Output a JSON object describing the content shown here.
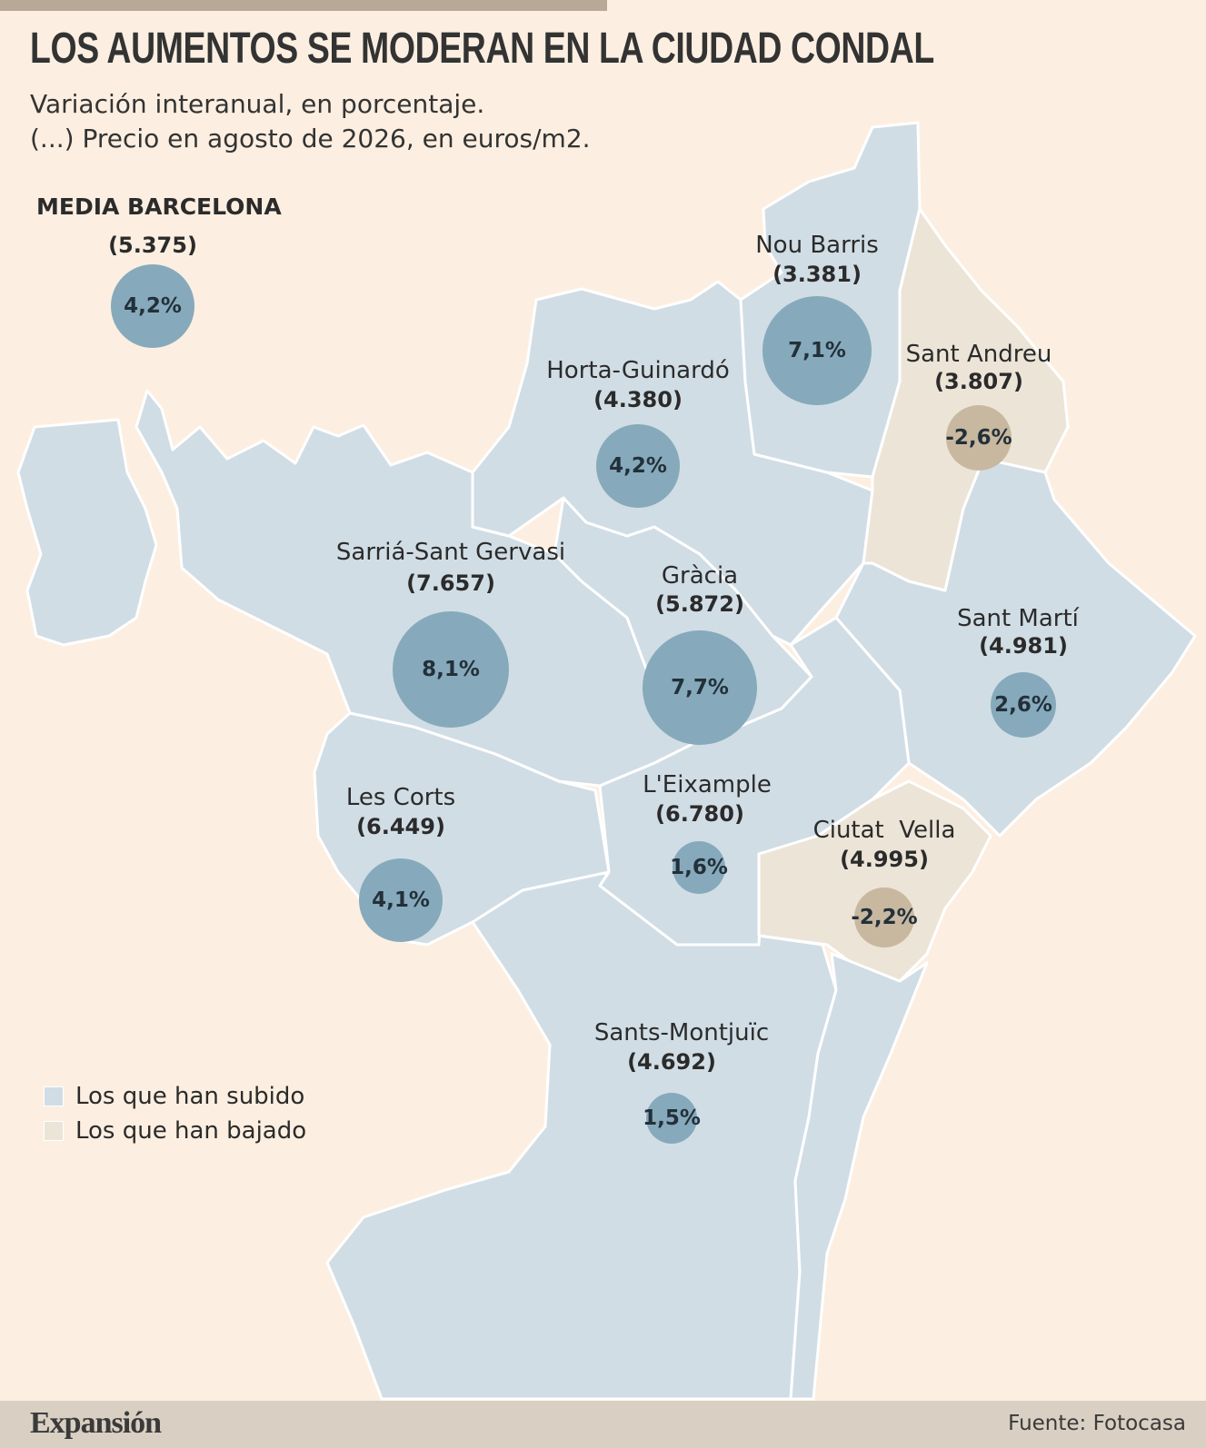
{
  "header": {
    "title": "LOS AUMENTOS SE MODERAN EN LA CIUDAD CONDAL",
    "subtitle_line1": "Variación interanual, en porcentaje.",
    "subtitle_line2": "(...) Precio en agosto de 2026, en euros/m2."
  },
  "average": {
    "heading": "MEDIA BARCELONA",
    "price": "(5.375)",
    "change": "4,2%",
    "change_value": 4.2
  },
  "colors": {
    "rose": "#d1dde5",
    "fell": "#ece4d7",
    "bubble_rose": "#86aabb",
    "bubble_fell": "#c8b8a0",
    "background": "#fcefe1"
  },
  "districts": [
    {
      "name": "Nou Barris",
      "price": "(3.381)",
      "change": "7,1%",
      "change_value": 7.1,
      "trend": "up"
    },
    {
      "name": "Sant Andreu",
      "price": "(3.807)",
      "change": "-2,6%",
      "change_value": -2.6,
      "trend": "down"
    },
    {
      "name": "Horta-Guinardó",
      "price": "(4.380)",
      "change": "4,2%",
      "change_value": 4.2,
      "trend": "up"
    },
    {
      "name": "Sarriá-Sant Gervasi",
      "price": "(7.657)",
      "change": "8,1%",
      "change_value": 8.1,
      "trend": "up"
    },
    {
      "name": "Gràcia",
      "price": "(5.872)",
      "change": "7,7%",
      "change_value": 7.7,
      "trend": "up"
    },
    {
      "name": "Sant Martí",
      "price": "(4.981)",
      "change": "2,6%",
      "change_value": 2.6,
      "trend": "up"
    },
    {
      "name": "Les Corts",
      "price": "(6.449)",
      "change": "4,1%",
      "change_value": 4.1,
      "trend": "up"
    },
    {
      "name": "L'Eixample",
      "price": "(6.780)",
      "change": "1,6%",
      "change_value": 1.6,
      "trend": "up"
    },
    {
      "name": "Ciutat  Vella",
      "price": "(4.995)",
      "change": "-2,2%",
      "change_value": -2.2,
      "trend": "down"
    },
    {
      "name": "Sants-Montjuïc",
      "price": "(4.692)",
      "change": "1,5%",
      "change_value": 1.5,
      "trend": "up"
    }
  ],
  "legend": {
    "rose": "Los que han subido",
    "fell": "Los que han bajado"
  },
  "footer": {
    "brand": "Expansión",
    "source": "Fuente: Fotocasa"
  }
}
